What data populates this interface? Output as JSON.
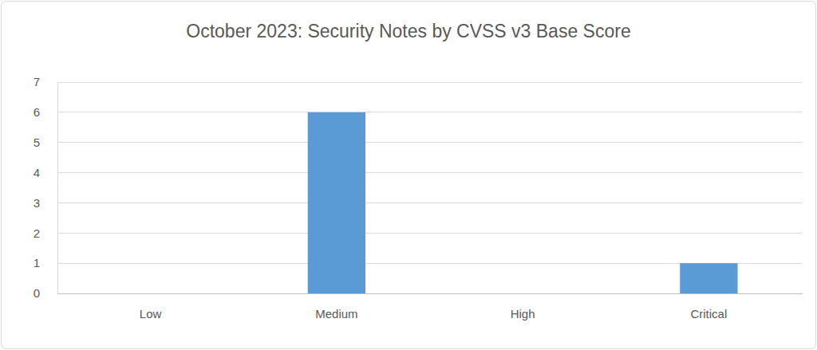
{
  "chart_data": {
    "type": "bar",
    "title": "October 2023: Security Notes by CVSS v3 Base Score",
    "categories": [
      "Low",
      "Medium",
      "High",
      "Critical"
    ],
    "values": [
      0,
      6,
      0,
      1
    ],
    "color": "#5b9bd5",
    "ylim": [
      0,
      7
    ],
    "yticks": [
      0,
      1,
      2,
      3,
      4,
      5,
      6,
      7
    ],
    "grid": true
  }
}
